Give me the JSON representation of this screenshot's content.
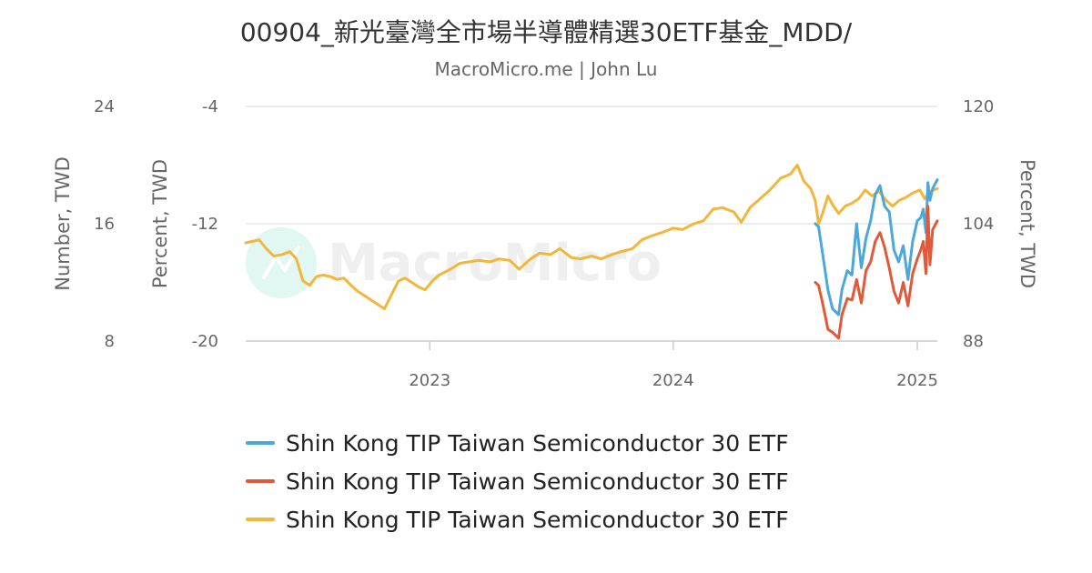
{
  "header": {
    "title": "00904_新光臺灣全市場半導體精選30ETF基金_MDD/",
    "subtitle": "MacroMicro.me | John Lu"
  },
  "watermark": {
    "text": "MacroMicro",
    "icon": "macromicro-logo-icon"
  },
  "axes": {
    "left_outer": {
      "title": "Number, TWD",
      "ticks": [
        "24",
        "16",
        "8"
      ],
      "range": [
        8,
        24
      ]
    },
    "left_inner": {
      "title": "Percent, TWD",
      "ticks": [
        "-4",
        "-12",
        "-20"
      ],
      "range": [
        -20,
        -4
      ]
    },
    "right": {
      "title": "Percent, TWD",
      "ticks": [
        "120",
        "104",
        "88"
      ],
      "range": [
        88,
        120
      ]
    },
    "x": {
      "ticks": [
        "2023",
        "2024",
        "2025"
      ]
    }
  },
  "chart_data": {
    "type": "line",
    "x_range": [
      "2022-03-31",
      "2025-01-31"
    ],
    "grid": true,
    "legend_position": "bottom",
    "series": [
      {
        "name": "Shin Kong TIP Taiwan Semiconductor 30 ETF",
        "color": "#4ba8d8",
        "axis": "left_inner",
        "points": [
          [
            "2024-08-01",
            -12.0
          ],
          [
            "2024-08-06",
            -12.2
          ],
          [
            "2024-08-12",
            -14.0
          ],
          [
            "2024-08-20",
            -16.5
          ],
          [
            "2024-08-27",
            -17.8
          ],
          [
            "2024-09-05",
            -18.2
          ],
          [
            "2024-09-10",
            -16.5
          ],
          [
            "2024-09-18",
            -15.2
          ],
          [
            "2024-09-25",
            -15.5
          ],
          [
            "2024-10-02",
            -12.0
          ],
          [
            "2024-10-09",
            -15.0
          ],
          [
            "2024-10-16",
            -13.0
          ],
          [
            "2024-10-23",
            -11.8
          ],
          [
            "2024-10-30",
            -10.0
          ],
          [
            "2024-11-06",
            -9.4
          ],
          [
            "2024-11-13",
            -10.8
          ],
          [
            "2024-11-20",
            -11.2
          ],
          [
            "2024-11-27",
            -13.8
          ],
          [
            "2024-12-04",
            -14.6
          ],
          [
            "2024-12-11",
            -13.5
          ],
          [
            "2024-12-18",
            -15.8
          ],
          [
            "2024-12-25",
            -13.2
          ],
          [
            "2025-01-01",
            -11.8
          ],
          [
            "2025-01-06",
            -11.6
          ],
          [
            "2025-01-10",
            -11.0
          ],
          [
            "2025-01-14",
            -12.6
          ],
          [
            "2025-01-17",
            -9.2
          ],
          [
            "2025-01-20",
            -10.4
          ],
          [
            "2025-01-24",
            -9.6
          ],
          [
            "2025-01-31",
            -9.0
          ]
        ]
      },
      {
        "name": "Shin Kong TIP Taiwan Semiconductor 30 ETF",
        "color": "#e05a3a",
        "axis": "left_outer",
        "points": [
          [
            "2024-08-01",
            12.0
          ],
          [
            "2024-08-06",
            11.8
          ],
          [
            "2024-08-12",
            10.6
          ],
          [
            "2024-08-20",
            8.8
          ],
          [
            "2024-08-27",
            8.6
          ],
          [
            "2024-09-05",
            8.2
          ],
          [
            "2024-09-10",
            9.8
          ],
          [
            "2024-09-18",
            10.9
          ],
          [
            "2024-09-25",
            10.8
          ],
          [
            "2024-10-02",
            12.2
          ],
          [
            "2024-10-09",
            10.6
          ],
          [
            "2024-10-16",
            12.8
          ],
          [
            "2024-10-23",
            13.4
          ],
          [
            "2024-10-30",
            14.8
          ],
          [
            "2024-11-06",
            15.4
          ],
          [
            "2024-11-13",
            14.4
          ],
          [
            "2024-11-20",
            13.0
          ],
          [
            "2024-11-27",
            11.4
          ],
          [
            "2024-12-04",
            10.6
          ],
          [
            "2024-12-11",
            12.0
          ],
          [
            "2024-12-18",
            10.4
          ],
          [
            "2024-12-25",
            12.6
          ],
          [
            "2025-01-01",
            13.6
          ],
          [
            "2025-01-06",
            14.2
          ],
          [
            "2025-01-10",
            14.8
          ],
          [
            "2025-01-14",
            12.6
          ],
          [
            "2025-01-17",
            17.2
          ],
          [
            "2025-01-20",
            13.2
          ],
          [
            "2025-01-24",
            15.6
          ],
          [
            "2025-01-31",
            16.2
          ]
        ]
      },
      {
        "name": "Shin Kong TIP Taiwan Semiconductor 30 ETF",
        "color": "#f2b63c",
        "axis": "right",
        "points": [
          [
            "2022-03-31",
            101.4
          ],
          [
            "2022-04-10",
            101.6
          ],
          [
            "2022-04-20",
            101.8
          ],
          [
            "2022-05-01",
            100.6
          ],
          [
            "2022-05-12",
            99.6
          ],
          [
            "2022-05-25",
            99.8
          ],
          [
            "2022-06-05",
            100.2
          ],
          [
            "2022-06-15",
            99.2
          ],
          [
            "2022-06-25",
            96.2
          ],
          [
            "2022-07-05",
            95.6
          ],
          [
            "2022-07-15",
            96.8
          ],
          [
            "2022-07-25",
            97.0
          ],
          [
            "2022-08-05",
            96.8
          ],
          [
            "2022-08-15",
            96.4
          ],
          [
            "2022-08-25",
            96.6
          ],
          [
            "2022-09-05",
            95.6
          ],
          [
            "2022-09-15",
            94.8
          ],
          [
            "2022-09-25",
            94.2
          ],
          [
            "2022-10-05",
            93.6
          ],
          [
            "2022-10-15",
            93.0
          ],
          [
            "2022-10-25",
            92.4
          ],
          [
            "2022-11-05",
            94.4
          ],
          [
            "2022-11-15",
            96.2
          ],
          [
            "2022-11-25",
            96.6
          ],
          [
            "2022-12-05",
            96.0
          ],
          [
            "2022-12-15",
            95.4
          ],
          [
            "2022-12-25",
            95.0
          ],
          [
            "2023-01-05",
            96.2
          ],
          [
            "2023-01-15",
            97.0
          ],
          [
            "2023-02-01",
            97.8
          ],
          [
            "2023-02-15",
            98.6
          ],
          [
            "2023-03-01",
            98.8
          ],
          [
            "2023-03-15",
            99.0
          ],
          [
            "2023-04-01",
            98.8
          ],
          [
            "2023-04-15",
            99.2
          ],
          [
            "2023-05-01",
            99.0
          ],
          [
            "2023-05-15",
            97.8
          ],
          [
            "2023-06-01",
            99.2
          ],
          [
            "2023-06-15",
            100.0
          ],
          [
            "2023-07-01",
            99.8
          ],
          [
            "2023-07-15",
            100.6
          ],
          [
            "2023-08-01",
            99.4
          ],
          [
            "2023-08-15",
            99.2
          ],
          [
            "2023-09-01",
            99.6
          ],
          [
            "2023-09-15",
            99.2
          ],
          [
            "2023-10-01",
            99.8
          ],
          [
            "2023-10-15",
            100.2
          ],
          [
            "2023-11-01",
            100.6
          ],
          [
            "2023-11-15",
            101.8
          ],
          [
            "2023-12-01",
            102.4
          ],
          [
            "2023-12-15",
            102.8
          ],
          [
            "2024-01-01",
            103.4
          ],
          [
            "2024-01-15",
            103.2
          ],
          [
            "2024-02-01",
            104.0
          ],
          [
            "2024-02-15",
            104.4
          ],
          [
            "2024-03-01",
            106.0
          ],
          [
            "2024-03-15",
            106.2
          ],
          [
            "2024-04-01",
            105.6
          ],
          [
            "2024-04-12",
            104.2
          ],
          [
            "2024-04-25",
            106.2
          ],
          [
            "2024-05-10",
            107.4
          ],
          [
            "2024-05-25",
            108.6
          ],
          [
            "2024-06-10",
            110.2
          ],
          [
            "2024-06-25",
            110.8
          ],
          [
            "2024-07-05",
            112.0
          ],
          [
            "2024-07-15",
            109.8
          ],
          [
            "2024-07-25",
            108.8
          ],
          [
            "2024-08-01",
            107.2
          ],
          [
            "2024-08-06",
            104.0
          ],
          [
            "2024-08-12",
            105.4
          ],
          [
            "2024-08-20",
            107.8
          ],
          [
            "2024-08-27",
            106.6
          ],
          [
            "2024-09-05",
            105.4
          ],
          [
            "2024-09-15",
            106.4
          ],
          [
            "2024-09-25",
            106.8
          ],
          [
            "2024-10-05",
            107.4
          ],
          [
            "2024-10-15",
            108.6
          ],
          [
            "2024-10-25",
            107.8
          ],
          [
            "2024-11-05",
            108.4
          ],
          [
            "2024-11-15",
            107.2
          ],
          [
            "2024-11-25",
            106.4
          ],
          [
            "2024-12-05",
            107.2
          ],
          [
            "2024-12-15",
            107.6
          ],
          [
            "2024-12-25",
            108.2
          ],
          [
            "2025-01-05",
            108.6
          ],
          [
            "2025-01-12",
            107.4
          ],
          [
            "2025-01-20",
            108.4
          ],
          [
            "2025-01-31",
            108.8
          ]
        ]
      }
    ]
  }
}
